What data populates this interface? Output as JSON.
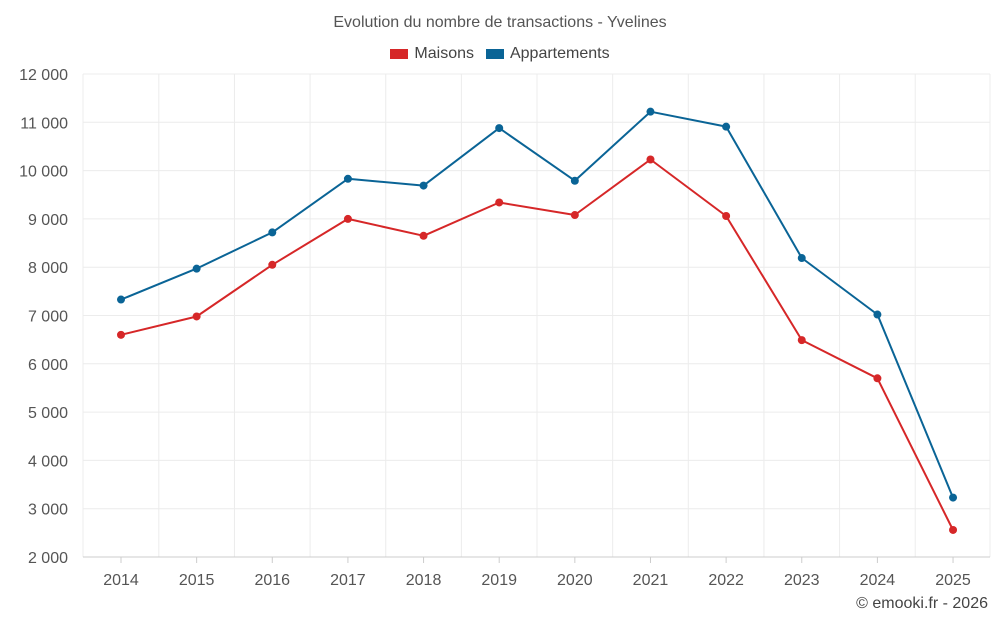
{
  "chart_data": {
    "type": "line",
    "title": "Evolution du nombre de transactions - Yvelines",
    "categories": [
      "2014",
      "2015",
      "2016",
      "2017",
      "2018",
      "2019",
      "2020",
      "2021",
      "2022",
      "2023",
      "2024",
      "2025"
    ],
    "series": [
      {
        "name": "Maisons",
        "color": "#d62728",
        "values": [
          6600,
          6980,
          8050,
          9000,
          8650,
          9340,
          9080,
          10230,
          9060,
          6490,
          5700,
          2560
        ]
      },
      {
        "name": "Appartements",
        "color": "#0a6496",
        "values": [
          7330,
          7970,
          8720,
          9830,
          9690,
          10880,
          9790,
          11220,
          10910,
          8190,
          7020,
          3230
        ]
      }
    ],
    "ylim": [
      2000,
      12000
    ],
    "yticks": [
      2000,
      3000,
      4000,
      5000,
      6000,
      7000,
      8000,
      9000,
      10000,
      11000,
      12000
    ],
    "ytick_labels": [
      "2 000",
      "3 000",
      "4 000",
      "5 000",
      "6 000",
      "7 000",
      "8 000",
      "9 000",
      "10 000",
      "11 000",
      "12 000"
    ],
    "xlabel": "",
    "ylabel": "",
    "grid": true,
    "legend_position": "top-center"
  },
  "credit": "© emooki.fr - 2026"
}
